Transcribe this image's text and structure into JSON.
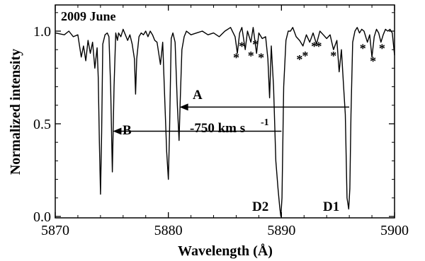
{
  "chart_data": {
    "type": "line",
    "title": "2009 June",
    "xlabel": "Wavelength (Å)",
    "ylabel": "Normalized intensity",
    "xlim": [
      5870,
      5900
    ],
    "ylim": [
      0.0,
      1.15
    ],
    "x_ticks": [
      5870,
      5880,
      5890,
      5900
    ],
    "x_tick_labels": [
      "5870",
      "5880",
      "5890",
      "5900"
    ],
    "y_ticks": [
      0.0,
      0.5,
      1.0
    ],
    "y_tick_labels": [
      "0.0",
      "0.5",
      "1.0"
    ],
    "grid": false,
    "series": [
      {
        "x": [
          5870.0,
          5870.8,
          5871.2,
          5871.6,
          5872.0,
          5872.3,
          5872.5,
          5872.7,
          5872.9,
          5873.1,
          5873.3,
          5873.5,
          5873.7,
          5873.8,
          5873.9,
          5874.0,
          5874.1,
          5874.2,
          5874.4,
          5874.6,
          5874.75,
          5874.9,
          5875.05,
          5875.2,
          5875.35,
          5875.5,
          5875.6,
          5875.8,
          5876.0,
          5876.2,
          5876.4,
          5876.6,
          5876.8,
          5877.0,
          5877.1,
          5877.2,
          5877.4,
          5877.6,
          5877.8,
          5878.0,
          5878.2,
          5878.4,
          5878.6,
          5878.8,
          5879.0,
          5879.3,
          5879.5,
          5879.7,
          5879.85,
          5880.0,
          5880.1,
          5880.25,
          5880.4,
          5880.6,
          5880.8,
          5880.95,
          5881.05,
          5881.2,
          5881.4,
          5881.6,
          5881.8,
          5882.0,
          5882.5,
          5883.0,
          5883.5,
          5884.0,
          5884.5,
          5885.0,
          5885.5,
          5885.9,
          5886.1,
          5886.3,
          5886.5,
          5886.8,
          5887.0,
          5887.3,
          5887.5,
          5887.8,
          5888.0,
          5888.3,
          5888.6,
          5888.8,
          5888.95,
          5889.1,
          5889.3,
          5889.5,
          5889.7,
          5889.85,
          5889.95,
          5890.05,
          5890.2,
          5890.4,
          5890.6,
          5890.8,
          5891.0,
          5891.3,
          5891.6,
          5891.9,
          5892.2,
          5892.5,
          5892.8,
          5893.1,
          5893.4,
          5893.7,
          5894.0,
          5894.3,
          5894.6,
          5894.9,
          5895.1,
          5895.3,
          5895.5,
          5895.65,
          5895.8,
          5895.95,
          5896.05,
          5896.15,
          5896.3,
          5896.5,
          5896.7,
          5896.9,
          5897.1,
          5897.3,
          5897.6,
          5897.8,
          5898.0,
          5898.2,
          5898.4,
          5898.6,
          5898.8,
          5899.0,
          5899.2,
          5899.4,
          5899.6,
          5899.8,
          5900.0
        ],
        "y": [
          0.99,
          0.98,
          1.0,
          0.97,
          0.98,
          0.86,
          0.92,
          0.84,
          0.95,
          0.88,
          0.94,
          0.8,
          0.91,
          0.75,
          0.4,
          0.12,
          0.45,
          0.93,
          0.98,
          0.99,
          0.97,
          0.7,
          0.24,
          0.7,
          0.99,
          0.95,
          0.99,
          0.97,
          1.01,
          0.98,
          0.95,
          0.98,
          0.93,
          0.85,
          0.66,
          0.85,
          0.97,
          0.99,
          0.98,
          1.0,
          0.97,
          1.0,
          0.98,
          0.95,
          0.94,
          0.82,
          0.94,
          0.6,
          0.35,
          0.2,
          0.45,
          0.96,
          0.99,
          0.94,
          0.6,
          0.41,
          0.62,
          0.9,
          0.97,
          1.0,
          0.99,
          0.98,
          0.99,
          1.0,
          0.98,
          0.99,
          0.97,
          1.0,
          1.02,
          0.97,
          0.88,
          0.99,
          1.02,
          0.9,
          1.0,
          0.94,
          1.02,
          0.88,
          0.99,
          0.96,
          0.97,
          0.85,
          0.64,
          0.92,
          0.7,
          0.3,
          0.15,
          0.05,
          0.0,
          0.1,
          0.7,
          0.95,
          1.0,
          1.0,
          1.02,
          0.97,
          0.95,
          0.92,
          0.98,
          0.94,
          0.99,
          0.93,
          1.0,
          0.98,
          0.96,
          0.98,
          0.9,
          0.95,
          0.78,
          0.9,
          0.7,
          0.55,
          0.1,
          0.04,
          0.15,
          0.55,
          0.94,
          1.0,
          1.02,
          0.99,
          1.01,
          1.0,
          0.94,
          0.98,
          0.86,
          0.97,
          1.01,
          0.99,
          0.94,
          0.98,
          1.01,
          1.0,
          1.01,
          0.99,
          0.87
        ]
      }
    ],
    "annotations": {
      "panel_label": "2009 June",
      "d2_label": "D2",
      "d1_label": "D1",
      "arrow_a_label": "A",
      "arrow_b_label": "B",
      "velocity_label": "-750 km s",
      "velocity_exponent": "-1",
      "telluric_marker": "*"
    },
    "arrows": [
      {
        "label": "A",
        "from_x": 5896.0,
        "to_x": 5881.0,
        "y": 0.59
      },
      {
        "label": "B",
        "from_x": 5890.0,
        "to_x": 5875.1,
        "y": 0.46
      }
    ],
    "telluric_markers": [
      {
        "x": 5886.0,
        "y": 0.88
      },
      {
        "x": 5886.5,
        "y": 0.94
      },
      {
        "x": 5887.3,
        "y": 0.89
      },
      {
        "x": 5887.7,
        "y": 0.95
      },
      {
        "x": 5888.2,
        "y": 0.88
      },
      {
        "x": 5891.6,
        "y": 0.87
      },
      {
        "x": 5892.1,
        "y": 0.89
      },
      {
        "x": 5892.9,
        "y": 0.94
      },
      {
        "x": 5893.3,
        "y": 0.94
      },
      {
        "x": 5894.6,
        "y": 0.89
      },
      {
        "x": 5897.2,
        "y": 0.93
      },
      {
        "x": 5898.1,
        "y": 0.86
      },
      {
        "x": 5898.9,
        "y": 0.93
      }
    ]
  }
}
